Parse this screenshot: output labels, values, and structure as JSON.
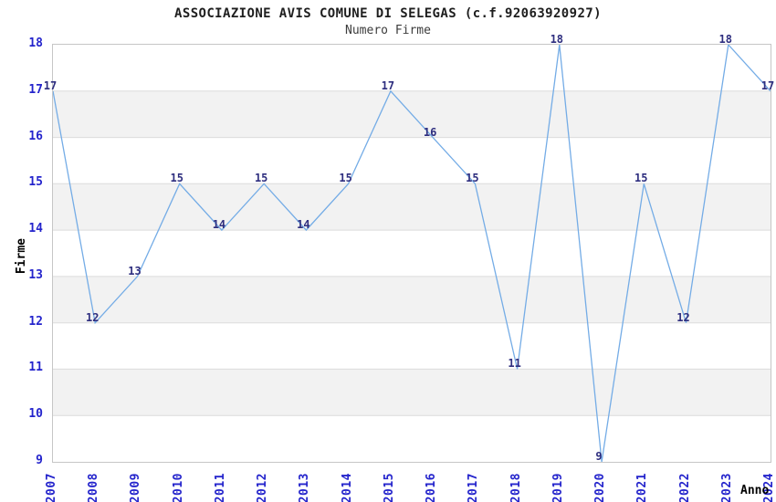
{
  "chart_data": {
    "type": "line",
    "title": "ASSOCIAZIONE AVIS COMUNE DI SELEGAS (c.f.92063920927)",
    "subtitle": "Numero Firme",
    "xlabel": "Anno",
    "ylabel": "Firme",
    "categories": [
      "2007",
      "2008",
      "2009",
      "2010",
      "2011",
      "2012",
      "2013",
      "2014",
      "2015",
      "2016",
      "2017",
      "2018",
      "2019",
      "2020",
      "2021",
      "2022",
      "2023",
      "2024"
    ],
    "values": [
      17,
      12,
      13,
      15,
      14,
      15,
      14,
      15,
      17,
      16,
      15,
      11,
      18,
      9,
      15,
      12,
      18,
      17
    ],
    "ylim": [
      9,
      18
    ],
    "ytick_step": 1,
    "grid": "horizontal-bands-alternating",
    "legend": "none",
    "point_labels_shown": true,
    "colors": {
      "line": "#74ace6",
      "tick_label": "#2424cc",
      "value_label": "#2e2e7f",
      "band_fill": "#f2f2f2",
      "gridline": "#dcdcdc",
      "plot_border": "#c6c6c6",
      "title": "#1e1e1e",
      "subtitle": "#3c3c3c",
      "axis_title": "#000000",
      "background": "#ffffff"
    }
  }
}
